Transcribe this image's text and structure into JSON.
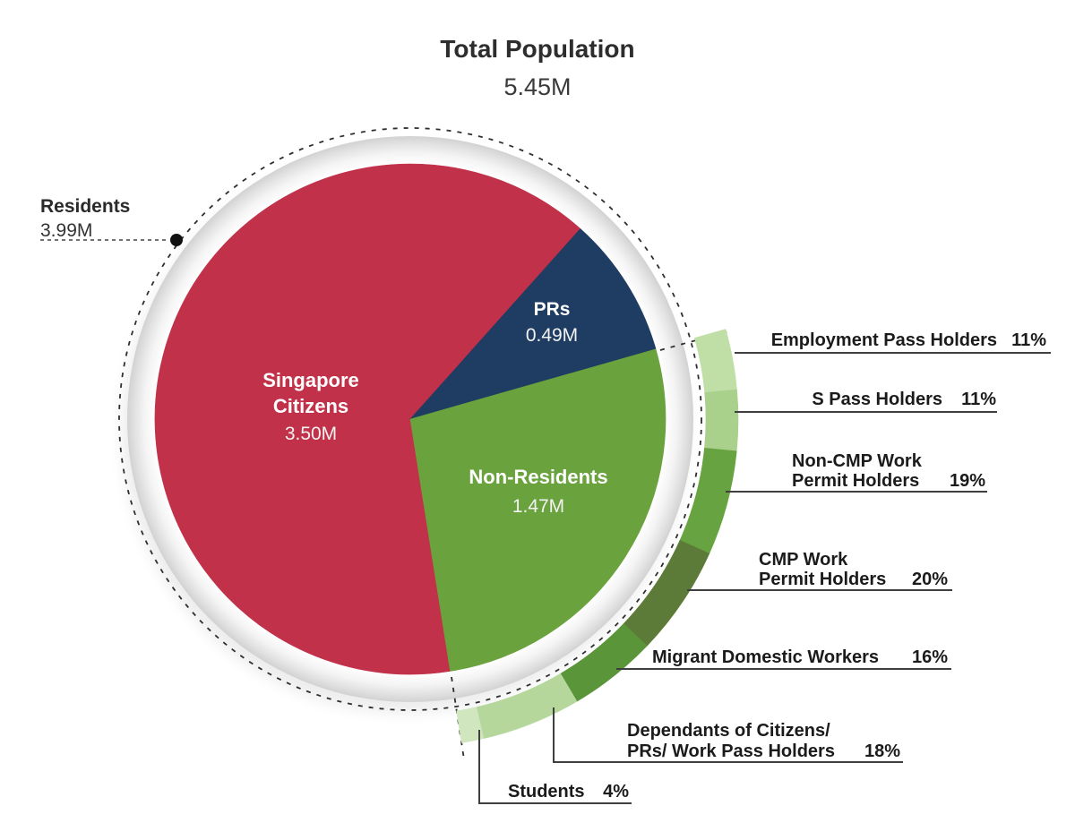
{
  "header": {
    "title": "Total Population",
    "total": "5.45M"
  },
  "residents_callout": {
    "label": "Residents",
    "value": "3.99M"
  },
  "chart_data": {
    "type": "pie",
    "title": "Total Population",
    "total_label": "5.45M",
    "total_millions": 5.45,
    "units": "millions of people",
    "slices": [
      {
        "label": "Singapore Citizens",
        "label_lines": [
          "Singapore",
          "Citizens"
        ],
        "value_label": "3.50M",
        "value_millions": 3.5,
        "color": "#C13149"
      },
      {
        "label": "PRs",
        "label_lines": [
          "PRs"
        ],
        "value_label": "0.49M",
        "value_millions": 0.49,
        "color": "#1F3D63"
      },
      {
        "label": "Non-Residents",
        "label_lines": [
          "Non-Residents"
        ],
        "value_label": "1.47M",
        "value_millions": 1.47,
        "color": "#6AA23D"
      }
    ],
    "residents_group": {
      "label": "Residents",
      "value_label": "3.99M",
      "value_millions": 3.99,
      "includes": [
        "Singapore Citizens",
        "PRs"
      ]
    },
    "non_resident_breakdown": {
      "pct_of": "Non-Residents",
      "segments": [
        {
          "label": "Employment Pass Holders",
          "lines": [
            "Employment Pass Holders"
          ],
          "pct": 11,
          "pct_label": "11%",
          "color": "#BFDFA6"
        },
        {
          "label": "S Pass Holders",
          "lines": [
            "S Pass Holders"
          ],
          "pct": 11,
          "pct_label": "11%",
          "color": "#A9D18C"
        },
        {
          "label": "Non-CMP Work Permit Holders",
          "lines": [
            "Non-CMP Work",
            "Permit Holders"
          ],
          "pct": 19,
          "pct_label": "19%",
          "color": "#68A342"
        },
        {
          "label": "CMP Work Permit Holders",
          "lines": [
            "CMP Work",
            "Permit Holders"
          ],
          "pct": 20,
          "pct_label": "20%",
          "color": "#5C7B38"
        },
        {
          "label": "Migrant Domestic Workers",
          "lines": [
            "Migrant Domestic Workers"
          ],
          "pct": 16,
          "pct_label": "16%",
          "color": "#5B9539"
        },
        {
          "label": "Dependants of Citizens/ PRs/ Work Pass Holders",
          "lines": [
            "Dependants of Citizens/",
            "PRs/ Work Pass Holders"
          ],
          "pct": 18,
          "pct_label": "18%",
          "color": "#B5D79C"
        },
        {
          "label": "Students",
          "lines": [
            "Students"
          ],
          "pct": 4,
          "pct_label": "4%",
          "color": "#D0E6BF"
        }
      ]
    }
  }
}
